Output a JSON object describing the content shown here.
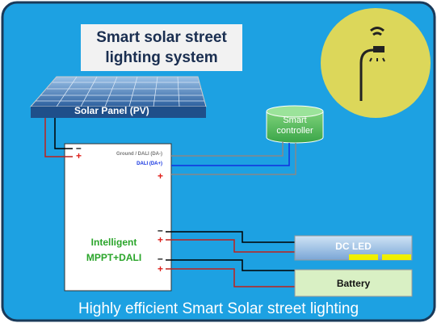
{
  "title": "Smart solar street lighting system",
  "panel_label": "Solar Panel (PV)",
  "controller_label": "Smart controller",
  "terminals": {
    "minus": "–",
    "plus": "+"
  },
  "dali_minus": "Ground / DALI (DA-)",
  "dali_plus": "DALI (DA+)",
  "mppt_label": "Intelligent MPPT+DALI",
  "led_label": "DC LED",
  "battery_label": "Battery",
  "footer": "Highly efficient Smart Solar street lighting"
}
